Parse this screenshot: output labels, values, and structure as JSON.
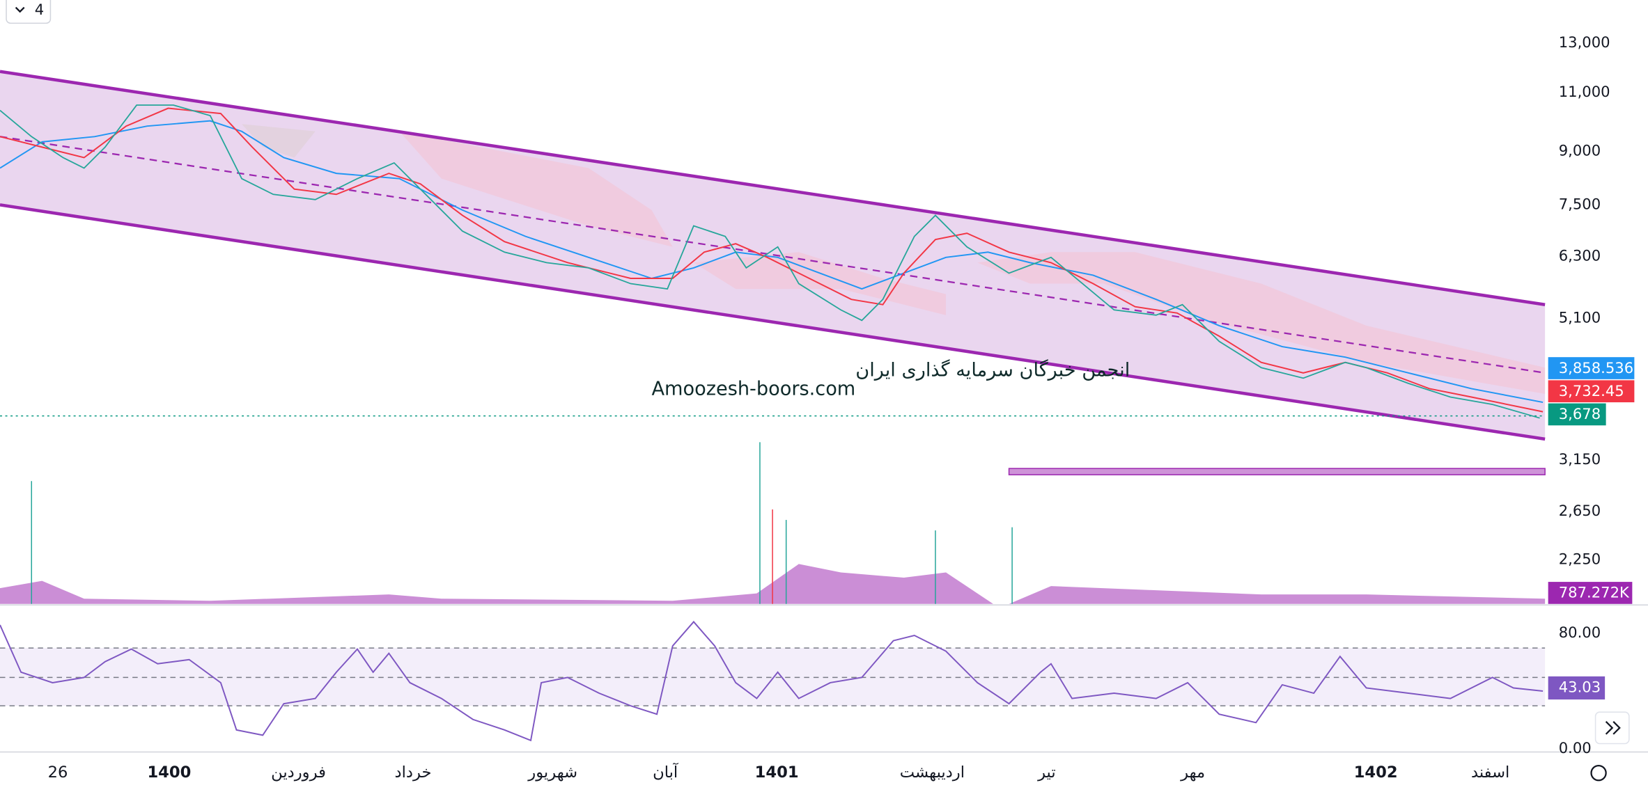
{
  "toolbar": {
    "interval": "4"
  },
  "price_axis": {
    "labels": [
      "13,000",
      "11,000",
      "9,000",
      "7,500",
      "6,300",
      "5,100",
      "3,150",
      "2,650",
      "2,250"
    ]
  },
  "badges": [
    {
      "label": "3,858.536"
    },
    {
      "label": "3,732.45"
    },
    {
      "label": "3,678"
    },
    {
      "label": "787.272K"
    },
    {
      "label": "43.03"
    }
  ],
  "rsi_axis": {
    "labels": [
      "80.00",
      "0.00"
    ]
  },
  "time_axis": {
    "labels": [
      "26",
      "1400",
      "فروردین",
      "خرداد",
      "شهریور",
      "آبان",
      "1401",
      "اردیبهشت",
      "تیر",
      "مهر",
      "1402",
      "اسفند"
    ]
  },
  "watermark": {
    "line1": "انجمن خبرگان سرمایه گذاری ایران",
    "line2": "Amoozesh-boors.com"
  }
}
